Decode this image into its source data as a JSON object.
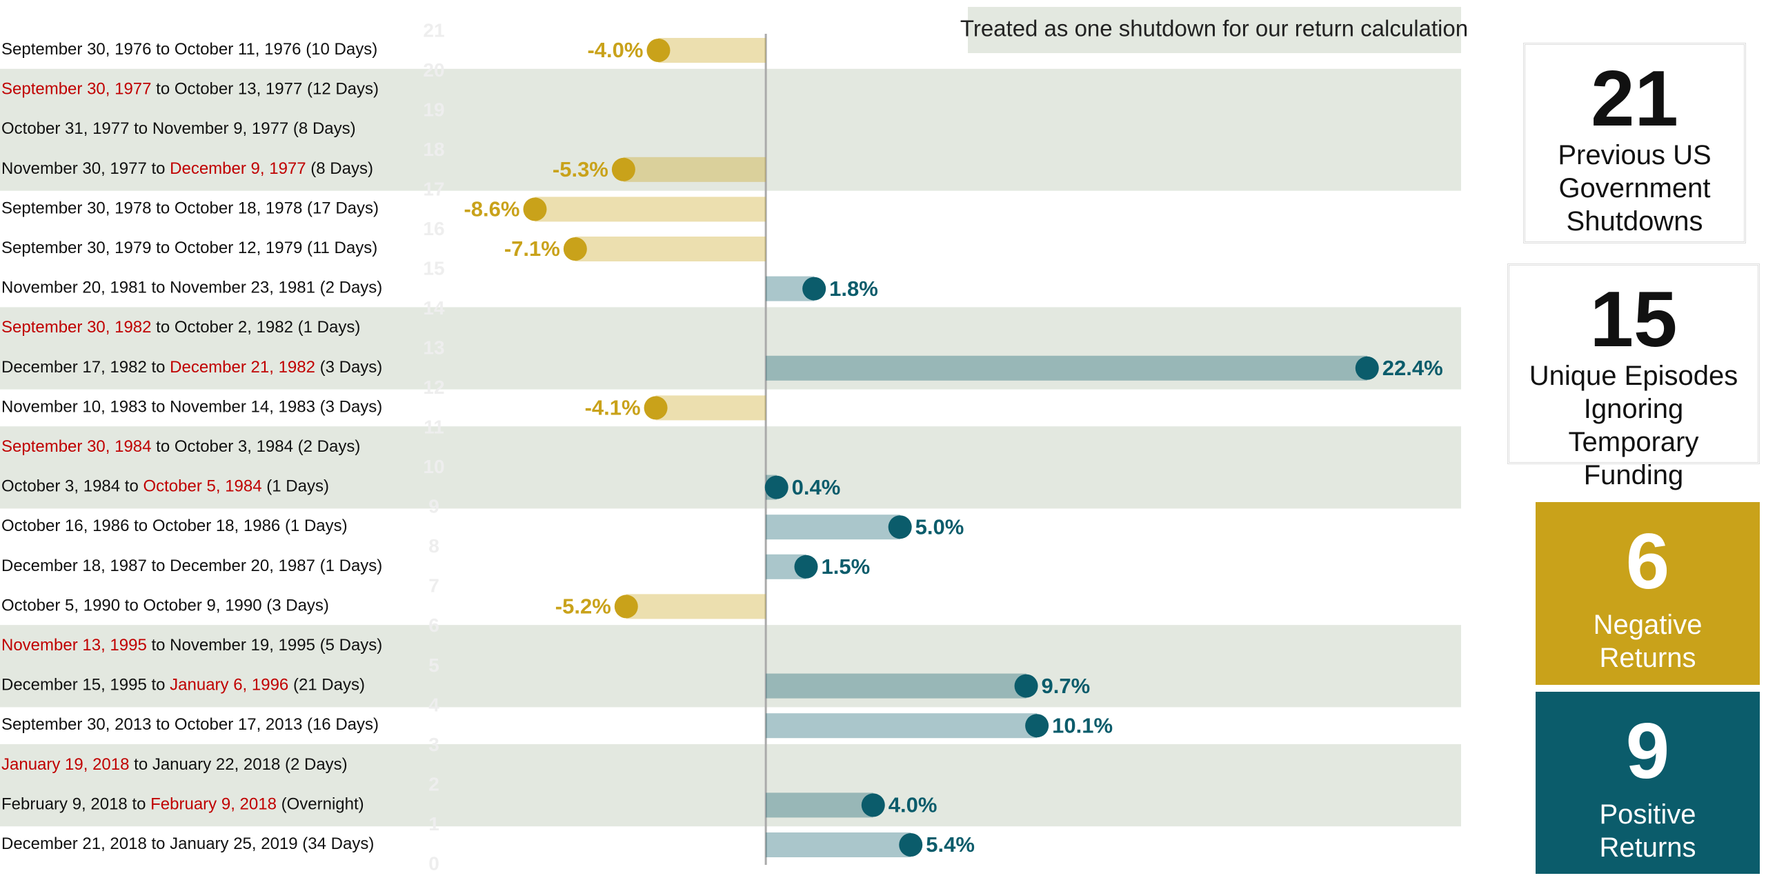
{
  "chart_data": {
    "type": "lollipop-bar",
    "annotation": "Treated as one shutdown for our return calculation",
    "categories": [
      [
        {
          "text": "September 30, 1976 to October 11, 1976 (10 Days)"
        }
      ],
      [
        {
          "text": "September 30, 1977",
          "highlight": true
        },
        {
          "text": " to October 13, 1977 (12 Days)"
        }
      ],
      [
        {
          "text": "October 31, 1977 to November 9, 1977 (8 Days)"
        }
      ],
      [
        {
          "text": "November 30, 1977 to "
        },
        {
          "text": "December 9, 1977",
          "highlight": true
        },
        {
          "text": " (8 Days)"
        }
      ],
      [
        {
          "text": "September 30, 1978 to October 18, 1978 (17 Days)"
        }
      ],
      [
        {
          "text": "September 30, 1979 to October 12, 1979 (11 Days)"
        }
      ],
      [
        {
          "text": "November 20, 1981 to November 23, 1981 (2 Days)"
        }
      ],
      [
        {
          "text": "September 30, 1982",
          "highlight": true
        },
        {
          "text": " to October 2, 1982 (1 Days)"
        }
      ],
      [
        {
          "text": "December 17, 1982 to "
        },
        {
          "text": "December 21, 1982",
          "highlight": true
        },
        {
          "text": " (3 Days)"
        }
      ],
      [
        {
          "text": "November 10, 1983 to November 14, 1983 (3 Days)"
        }
      ],
      [
        {
          "text": "September 30, 1984",
          "highlight": true
        },
        {
          "text": " to October 3, 1984 (2 Days)"
        }
      ],
      [
        {
          "text": "October 3, 1984 to "
        },
        {
          "text": "October 5, 1984",
          "highlight": true
        },
        {
          "text": " (1 Days)"
        }
      ],
      [
        {
          "text": "October 16, 1986 to October 18, 1986 (1 Days)"
        }
      ],
      [
        {
          "text": "December 18, 1987 to December 20, 1987 (1 Days)"
        }
      ],
      [
        {
          "text": "October 5, 1990 to October 9, 1990 (3 Days)"
        }
      ],
      [
        {
          "text": "November 13, 1995",
          "highlight": true
        },
        {
          "text": " to November 19, 1995 (5 Days)"
        }
      ],
      [
        {
          "text": "December 15, 1995 to "
        },
        {
          "text": "January 6, 1996",
          "highlight": true
        },
        {
          "text": " (21 Days)"
        }
      ],
      [
        {
          "text": "September 30, 2013 to October 17, 2013 (16 Days)"
        }
      ],
      [
        {
          "text": "January 19, 2018",
          "highlight": true
        },
        {
          "text": " to January 22, 2018 (2 Days)"
        }
      ],
      [
        {
          "text": "February 9, 2018 to "
        },
        {
          "text": "February 9, 2018",
          "highlight": true
        },
        {
          "text": " (Overnight)"
        }
      ],
      [
        {
          "text": "December 21, 2018 to January 25, 2019 (34 Days)"
        }
      ]
    ],
    "values": [
      -4.0,
      null,
      null,
      -5.3,
      -8.6,
      -7.1,
      1.8,
      null,
      22.4,
      -4.1,
      null,
      0.4,
      5.0,
      1.5,
      -5.2,
      null,
      9.7,
      10.1,
      null,
      4.0,
      5.4
    ],
    "value_labels": [
      "-4.0%",
      null,
      null,
      "-5.3%",
      "-8.6%",
      "-7.1%",
      "1.8%",
      null,
      "22.4%",
      "-4.1%",
      null,
      "0.4%",
      "5.0%",
      "1.5%",
      "-5.2%",
      null,
      "9.7%",
      "10.1%",
      null,
      "4.0%",
      "5.4%"
    ],
    "shaded_groups": [
      [
        1,
        3
      ],
      [
        7,
        8
      ],
      [
        10,
        11
      ],
      [
        15,
        16
      ],
      [
        18,
        19
      ]
    ],
    "negative_color": "#c9a21a",
    "positive_color": "#0b5c6b",
    "xlim": [
      -10,
      24
    ],
    "ylim": [
      0,
      21
    ],
    "yticks": [
      0,
      1,
      2,
      3,
      4,
      5,
      6,
      7,
      8,
      9,
      10,
      11,
      12,
      13,
      14,
      15,
      16,
      17,
      18,
      19,
      20,
      21
    ]
  },
  "stats": [
    {
      "value": 21,
      "lines": [
        "Previous US",
        "Government",
        "Shutdowns"
      ]
    },
    {
      "value": 15,
      "lines": [
        "Unique Episodes",
        "Ignoring",
        "Temporary",
        "Funding"
      ]
    },
    {
      "value": 6,
      "lines": [
        "Negative",
        "Returns"
      ]
    },
    {
      "value": 9,
      "lines": [
        "Positive",
        "Returns"
      ]
    }
  ]
}
